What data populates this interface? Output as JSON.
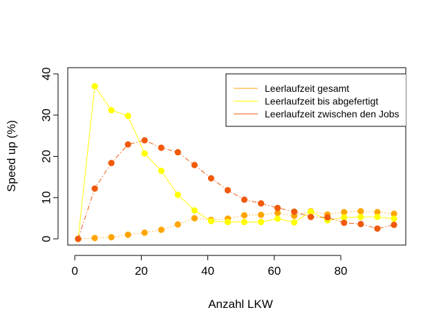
{
  "chart_data": {
    "type": "line",
    "xlabel": "Anzahl LKW",
    "ylabel": "Speed up (%)",
    "xlim": [
      0,
      96
    ],
    "ylim": [
      0,
      40
    ],
    "x_ticks": [
      0,
      20,
      40,
      60,
      80
    ],
    "y_ticks": [
      0,
      10,
      20,
      30,
      40
    ],
    "legend_position": "top-right",
    "x": [
      1,
      6,
      11,
      16,
      21,
      26,
      31,
      36,
      41,
      46,
      51,
      56,
      61,
      66,
      71,
      76,
      81,
      86,
      91,
      96
    ],
    "series": [
      {
        "name": "Leerlaufzeit gesamt",
        "color": "#FFA500",
        "line_style": "dotted",
        "values": [
          0.0,
          0.2,
          0.4,
          1.0,
          1.5,
          2.2,
          3.5,
          5.0,
          4.6,
          4.9,
          5.7,
          5.8,
          6.3,
          5.6,
          6.7,
          5.9,
          6.5,
          6.7,
          6.5,
          6.1
        ]
      },
      {
        "name": "Leerlaufzeit bis abgefertigt",
        "color": "#FFFF00",
        "line_style": "solid",
        "values": [
          0.0,
          37.0,
          31.2,
          29.8,
          20.7,
          16.5,
          10.7,
          6.9,
          4.3,
          4.1,
          4.1,
          4.1,
          4.9,
          4.0,
          6.6,
          4.5,
          5.2,
          5.3,
          5.3,
          4.9
        ]
      },
      {
        "name": "Leerlaufzeit zwischen den Jobs",
        "color": "#F05A0A",
        "line_style": "dashdot",
        "values": [
          0.0,
          12.2,
          18.4,
          22.9,
          23.9,
          22.1,
          21.0,
          17.9,
          14.7,
          11.8,
          9.5,
          8.6,
          7.5,
          6.6,
          5.3,
          5.2,
          3.9,
          3.6,
          2.5,
          3.4
        ]
      }
    ]
  }
}
